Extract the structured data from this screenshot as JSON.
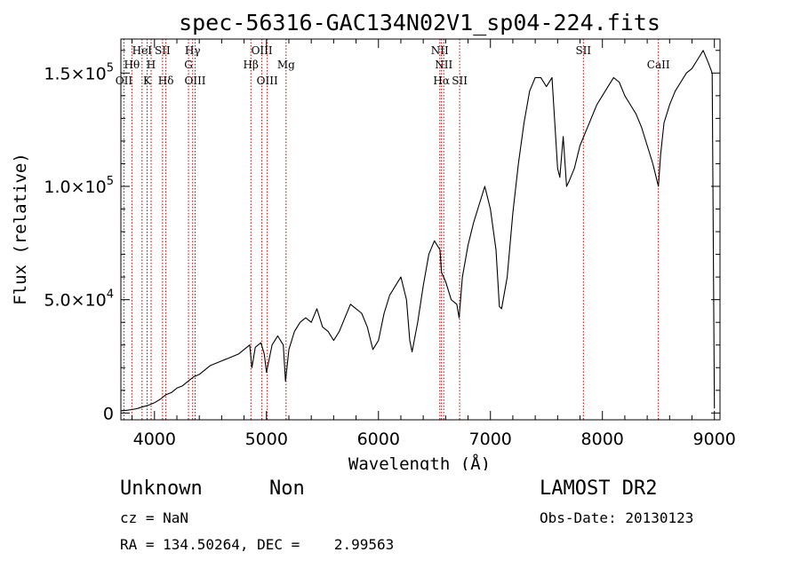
{
  "chart_data": {
    "type": "line",
    "title": "spec-56316-GAC134N02V1_sp04-224.fits",
    "xlabel": "Wavelength (Å)",
    "ylabel": "Flux (relative)",
    "xlim": [
      3700,
      9050
    ],
    "ylim": [
      -3000,
      165000
    ],
    "xticks": [
      {
        "value": 4000,
        "label": "4000"
      },
      {
        "value": 5000,
        "label": "5000"
      },
      {
        "value": 6000,
        "label": "6000"
      },
      {
        "value": 7000,
        "label": "7000"
      },
      {
        "value": 8000,
        "label": "8000"
      },
      {
        "value": 9000,
        "label": "9000"
      }
    ],
    "yticks": [
      {
        "value": 0,
        "mantissa": "0",
        "exponent": ""
      },
      {
        "value": 50000,
        "mantissa": "5.0×10",
        "exponent": "4"
      },
      {
        "value": 100000,
        "mantissa": "1.0×10",
        "exponent": "5"
      },
      {
        "value": 150000,
        "mantissa": "1.5×10",
        "exponent": "5"
      }
    ],
    "grid": false,
    "series": [
      {
        "x": [
          3700,
          3750,
          3800,
          3850,
          3900,
          3950,
          4000,
          4050,
          4100,
          4150,
          4200,
          4250,
          4300,
          4350,
          4400,
          4450,
          4500,
          4550,
          4600,
          4650,
          4700,
          4750,
          4800,
          4850,
          4870,
          4900,
          4950,
          4980,
          5000,
          5050,
          5100,
          5150,
          5170,
          5200,
          5250,
          5300,
          5350,
          5400,
          5450,
          5500,
          5550,
          5600,
          5650,
          5700,
          5750,
          5800,
          5850,
          5900,
          5950,
          6000,
          6050,
          6100,
          6150,
          6200,
          6250,
          6280,
          6300,
          6350,
          6400,
          6450,
          6500,
          6550,
          6563,
          6600,
          6650,
          6700,
          6720,
          6750,
          6800,
          6850,
          6900,
          6950,
          7000,
          7050,
          7080,
          7100,
          7150,
          7200,
          7250,
          7300,
          7350,
          7400,
          7450,
          7500,
          7550,
          7600,
          7620,
          7650,
          7680,
          7700,
          7750,
          7800,
          7850,
          7900,
          7950,
          8000,
          8050,
          8100,
          8150,
          8200,
          8250,
          8300,
          8350,
          8400,
          8450,
          8500,
          8520,
          8550,
          8600,
          8650,
          8700,
          8750,
          8800,
          8850,
          8900,
          8950,
          8980,
          9000
        ],
        "y": [
          1000,
          1200,
          1500,
          2000,
          2800,
          3500,
          4500,
          6000,
          8000,
          9000,
          11000,
          12000,
          14000,
          16000,
          17000,
          19000,
          21000,
          22000,
          23000,
          24000,
          25000,
          26000,
          28000,
          30000,
          20000,
          29000,
          31000,
          26000,
          18000,
          30000,
          34000,
          30000,
          14000,
          28000,
          36000,
          40000,
          42000,
          40000,
          46000,
          38000,
          36000,
          32000,
          36000,
          42000,
          48000,
          46000,
          44000,
          38000,
          28000,
          32000,
          44000,
          52000,
          56000,
          60000,
          50000,
          32000,
          27000,
          40000,
          56000,
          70000,
          76000,
          72000,
          62000,
          58000,
          50000,
          48000,
          42000,
          60000,
          74000,
          84000,
          92000,
          100000,
          90000,
          72000,
          47000,
          46000,
          60000,
          88000,
          110000,
          128000,
          142000,
          148000,
          148000,
          144000,
          148000,
          108000,
          104000,
          122000,
          100000,
          102000,
          108000,
          118000,
          124000,
          130000,
          136000,
          140000,
          144000,
          148000,
          146000,
          140000,
          136000,
          132000,
          126000,
          118000,
          110000,
          100000,
          114000,
          128000,
          136000,
          142000,
          146000,
          150000,
          152000,
          156000,
          160000,
          154000,
          150000,
          2000
        ]
      }
    ],
    "line_markers": [
      {
        "wavelength": 3727,
        "label": "OII",
        "row": 3
      },
      {
        "wavelength": 3798,
        "label": "Hθ",
        "row": 2
      },
      {
        "wavelength": 3889,
        "label": "HeI",
        "row": 1
      },
      {
        "wavelength": 3934,
        "label": "K",
        "row": 3
      },
      {
        "wavelength": 3970,
        "label": "H",
        "row": 2
      },
      {
        "wavelength": 4072,
        "label": "SII",
        "row": 1
      },
      {
        "wavelength": 4102,
        "label": "Hδ",
        "row": 3
      },
      {
        "wavelength": 4304,
        "label": "G",
        "row": 2
      },
      {
        "wavelength": 4341,
        "label": "Hγ",
        "row": 1
      },
      {
        "wavelength": 4363,
        "label": "OIII",
        "row": 3
      },
      {
        "wavelength": 4861,
        "label": "Hβ",
        "row": 2
      },
      {
        "wavelength": 4959,
        "label": "OIII",
        "row": 1
      },
      {
        "wavelength": 5007,
        "label": "OIII",
        "row": 3
      },
      {
        "wavelength": 5175,
        "label": "Mg",
        "row": 2
      },
      {
        "wavelength": 6548,
        "label": "NII",
        "row": 1
      },
      {
        "wavelength": 6563,
        "label": "Hα",
        "row": 3
      },
      {
        "wavelength": 6583,
        "label": "NII",
        "row": 2
      },
      {
        "wavelength": 6725,
        "label": "SII",
        "row": 3
      },
      {
        "wavelength": 7830,
        "label": "SII",
        "row": 1
      },
      {
        "wavelength": 8500,
        "label": "CaII",
        "row": 2
      }
    ]
  },
  "info": {
    "object_class": "Unknown",
    "subclass": "Non",
    "survey": "LAMOST DR2",
    "cz": "cz = NaN",
    "obs_date": "Obs-Date: 20130123",
    "coords": "RA = 134.50264, DEC =    2.99563"
  }
}
